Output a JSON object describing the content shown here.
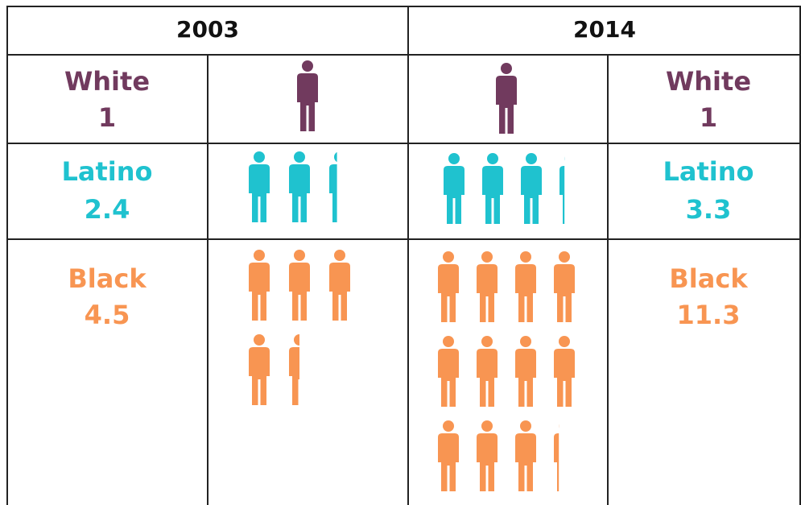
{
  "chart_data": {
    "type": "pictogram",
    "categories": [
      "White",
      "Latino",
      "Black"
    ],
    "colors": [
      "#713a5e",
      "#1fc2cf",
      "#f89552"
    ],
    "series": [
      {
        "name": "2003",
        "values": [
          1,
          2.4,
          4.5
        ]
      },
      {
        "name": "2014",
        "values": [
          1,
          3.3,
          11.3
        ]
      }
    ]
  }
}
